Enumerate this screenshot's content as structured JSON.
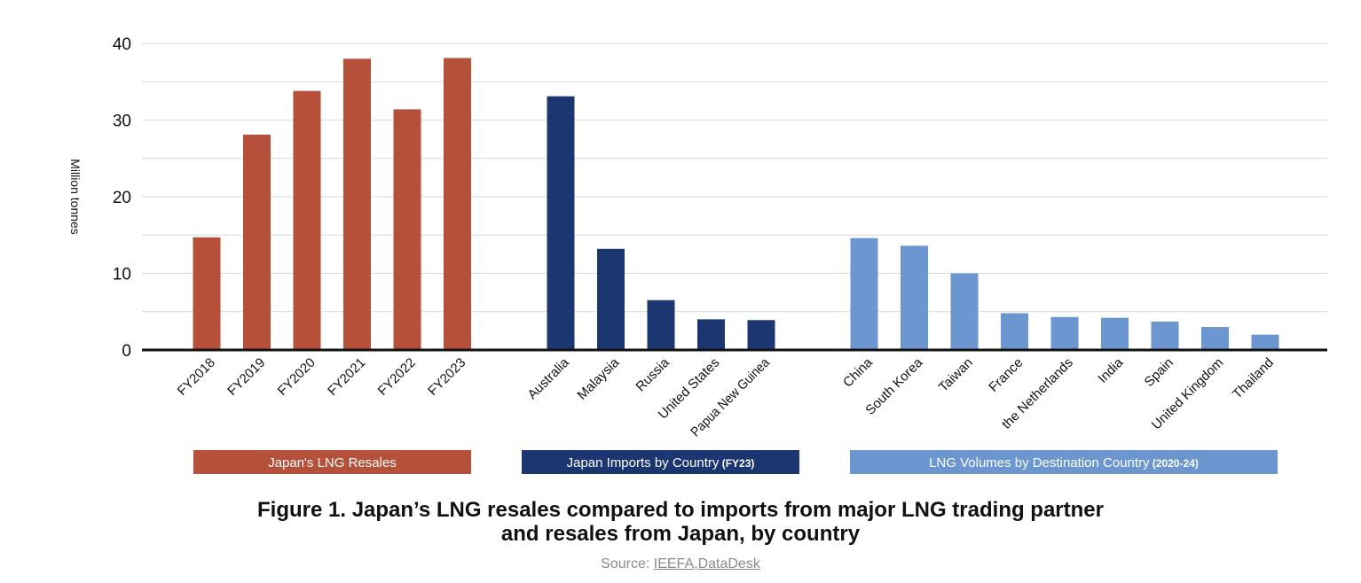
{
  "chart_data": {
    "type": "bar",
    "ylabel": "Million tonnes",
    "ylim": [
      0,
      40
    ],
    "yticks": [
      0,
      10,
      20,
      30,
      40
    ],
    "groups": [
      {
        "name": "Japan's LNG Resales",
        "suffix": "",
        "color": "#b5513a",
        "categories": [
          "FY2018",
          "FY2019",
          "FY2020",
          "FY2021",
          "FY2022",
          "FY2023"
        ],
        "values": [
          14.7,
          28.1,
          33.8,
          38.0,
          31.4,
          38.1
        ]
      },
      {
        "name": "Japan Imports by Country",
        "suffix": "(FY23)",
        "color": "#1c3672",
        "categories": [
          "Australia",
          "Malaysia",
          "Russia",
          "United States",
          "Papua New Guinea"
        ],
        "values": [
          33.1,
          13.2,
          6.5,
          4.0,
          3.9
        ]
      },
      {
        "name": "LNG Volumes by Destination Country",
        "suffix": "(2020-24)",
        "color": "#6b96cf",
        "categories": [
          "China",
          "South Korea",
          "Taiwan",
          "France",
          "the Netherlands",
          "India",
          "Spain",
          "United Kingdom",
          "Thailand"
        ],
        "values": [
          14.6,
          13.6,
          10.0,
          4.8,
          4.3,
          4.2,
          3.7,
          3.0,
          2.0
        ]
      }
    ]
  },
  "figure": {
    "title_line1": "Figure 1. Japan’s LNG resales compared to imports from major LNG trading partner",
    "title_line2": "and resales from Japan, by country",
    "source_prefix": "Source: ",
    "source_link1": "IEEFA",
    "source_sep": ",",
    "source_link2": "DataDesk"
  }
}
